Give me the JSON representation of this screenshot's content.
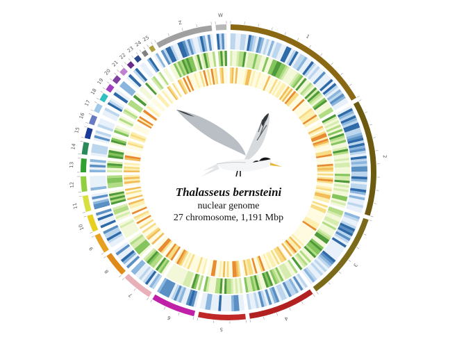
{
  "figure": {
    "species": "Thalasseus bernsteini",
    "subtitle": "nuclear genome",
    "stats": "27 chromosome, 1,191 Mbp"
  },
  "chromosomes": [
    {
      "name": "1",
      "size": 196,
      "color": "#8b6914"
    },
    {
      "name": "2",
      "size": 152,
      "color": "#6b5a0f"
    },
    {
      "name": "3",
      "size": 116,
      "color": "#7a6a1a"
    },
    {
      "name": "4",
      "size": 88,
      "color": "#b22020"
    },
    {
      "name": "5",
      "size": 62,
      "color": "#c02828"
    },
    {
      "name": "6",
      "size": 58,
      "color": "#c020a8"
    },
    {
      "name": "7",
      "size": 40,
      "color": "#e8b0b8"
    },
    {
      "name": "8",
      "size": 31,
      "color": "#e08a1a"
    },
    {
      "name": "9",
      "size": 25,
      "color": "#e8a020"
    },
    {
      "name": "10",
      "size": 22,
      "color": "#e8d020"
    },
    {
      "name": "11",
      "size": 21,
      "color": "#d8e040"
    },
    {
      "name": "12",
      "size": 20,
      "color": "#90d040"
    },
    {
      "name": "13",
      "size": 18,
      "color": "#30a030"
    },
    {
      "name": "14",
      "size": 16,
      "color": "#2a8a5a"
    },
    {
      "name": "15",
      "size": 14,
      "color": "#1a3a9a"
    },
    {
      "name": "16",
      "size": 12,
      "color": "#6a7ac0"
    },
    {
      "name": "17",
      "size": 11,
      "color": "#a0c8e8"
    },
    {
      "name": "18",
      "size": 10,
      "color": "#30c0c0"
    },
    {
      "name": "19",
      "size": 9,
      "color": "#a040c0"
    },
    {
      "name": "20",
      "size": 9,
      "color": "#8040a0"
    },
    {
      "name": "21",
      "size": 8,
      "color": "#c080d0"
    },
    {
      "name": "22",
      "size": 7,
      "color": "#6a2a8a"
    },
    {
      "name": "23",
      "size": 7,
      "color": "#2a4a8a"
    },
    {
      "name": "24",
      "size": 6,
      "color": "#808080"
    },
    {
      "name": "25",
      "size": 6,
      "color": "#b0a040"
    },
    {
      "name": "Z",
      "size": 75,
      "color": "#a0a0a0"
    },
    {
      "name": "W",
      "size": 14,
      "color": "#b8b8b8"
    }
  ],
  "track_colors": {
    "outer": [
      "#e8f1fa",
      "#bcd6ee",
      "#8ab5dd",
      "#5a8fc4",
      "#2f6aa8"
    ],
    "middle": [
      "#f2f8d8",
      "#d6ecae",
      "#b2dc84",
      "#84c45c",
      "#4e9a3a"
    ],
    "inner": [
      "#fffbe0",
      "#fcefb0",
      "#f8dc84",
      "#f2bc58",
      "#e88a30"
    ]
  }
}
